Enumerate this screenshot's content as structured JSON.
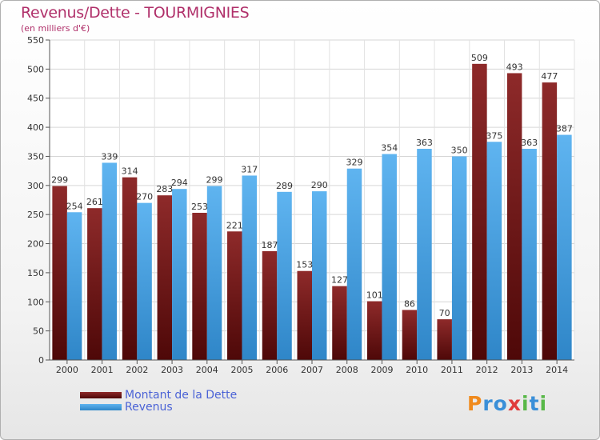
{
  "header": {
    "title": "Revenus/Dette - TOURMIGNIES",
    "subtitle": "(en milliers d'€)"
  },
  "chart_data": {
    "type": "bar",
    "title": "Revenus/Dette - TOURMIGNIES",
    "subtitle": "(en milliers d'€)",
    "categories": [
      "2000",
      "2001",
      "2002",
      "2003",
      "2004",
      "2005",
      "2006",
      "2007",
      "2008",
      "2009",
      "2010",
      "2011",
      "2012",
      "2013",
      "2014"
    ],
    "series": [
      {
        "name": "Montant de la Dette",
        "color": "#7a1a1a",
        "values": [
          299,
          261,
          314,
          283,
          253,
          221,
          187,
          153,
          127,
          101,
          86,
          70,
          509,
          493,
          477
        ]
      },
      {
        "name": "Revenus",
        "color": "#3d9ee0",
        "values": [
          254,
          339,
          270,
          294,
          299,
          317,
          289,
          290,
          329,
          354,
          363,
          350,
          375,
          363,
          387
        ]
      }
    ],
    "ylim": [
      0,
      550
    ],
    "yticks": [
      0,
      50,
      100,
      150,
      200,
      250,
      300,
      350,
      400,
      450,
      500,
      550
    ],
    "grid": true,
    "legend": "bottom-left"
  },
  "legend": {
    "items": [
      {
        "label": "Montant de la Dette",
        "color": "#7a1a1a"
      },
      {
        "label": "Revenus",
        "color": "#3d9ee0"
      }
    ]
  },
  "logo": {
    "letters": [
      "P",
      "r",
      "o",
      "x",
      "i",
      "t",
      "i"
    ],
    "colors": [
      "#f08a1c",
      "#3a8fd8",
      "#3a8fd8",
      "#e03a3a",
      "#58b848",
      "#3a8fd8",
      "#58b848"
    ]
  }
}
